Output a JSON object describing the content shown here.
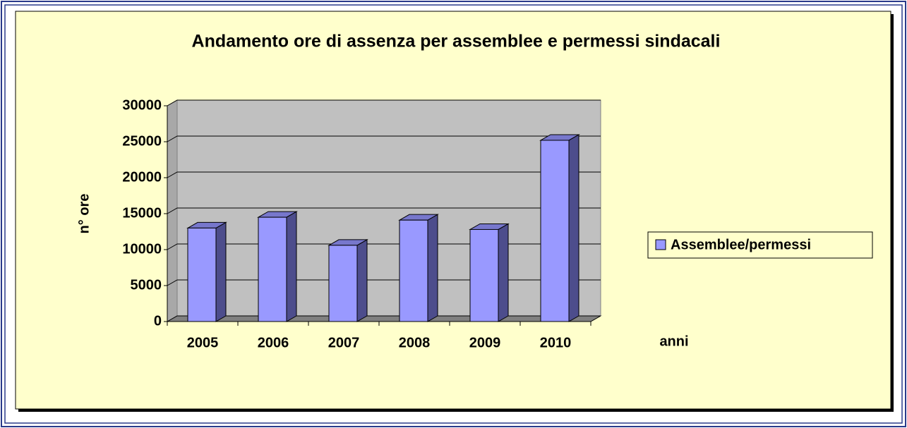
{
  "chart_data": {
    "type": "bar",
    "title": "Andamento ore di assenza per assemblee e permessi sindacali",
    "categories": [
      "2005",
      "2006",
      "2007",
      "2008",
      "2009",
      "2010"
    ],
    "series": [
      {
        "name": "Assemblee/permessi",
        "color": "#9999ff",
        "values": [
          13000,
          14500,
          10600,
          14100,
          12800,
          25200
        ]
      }
    ],
    "ylim": [
      0,
      30000
    ],
    "yticks": [
      0,
      5000,
      10000,
      15000,
      20000,
      25000,
      30000
    ],
    "y_label": "n° ore",
    "x_label": "anni",
    "grid": true,
    "legend": "right"
  }
}
